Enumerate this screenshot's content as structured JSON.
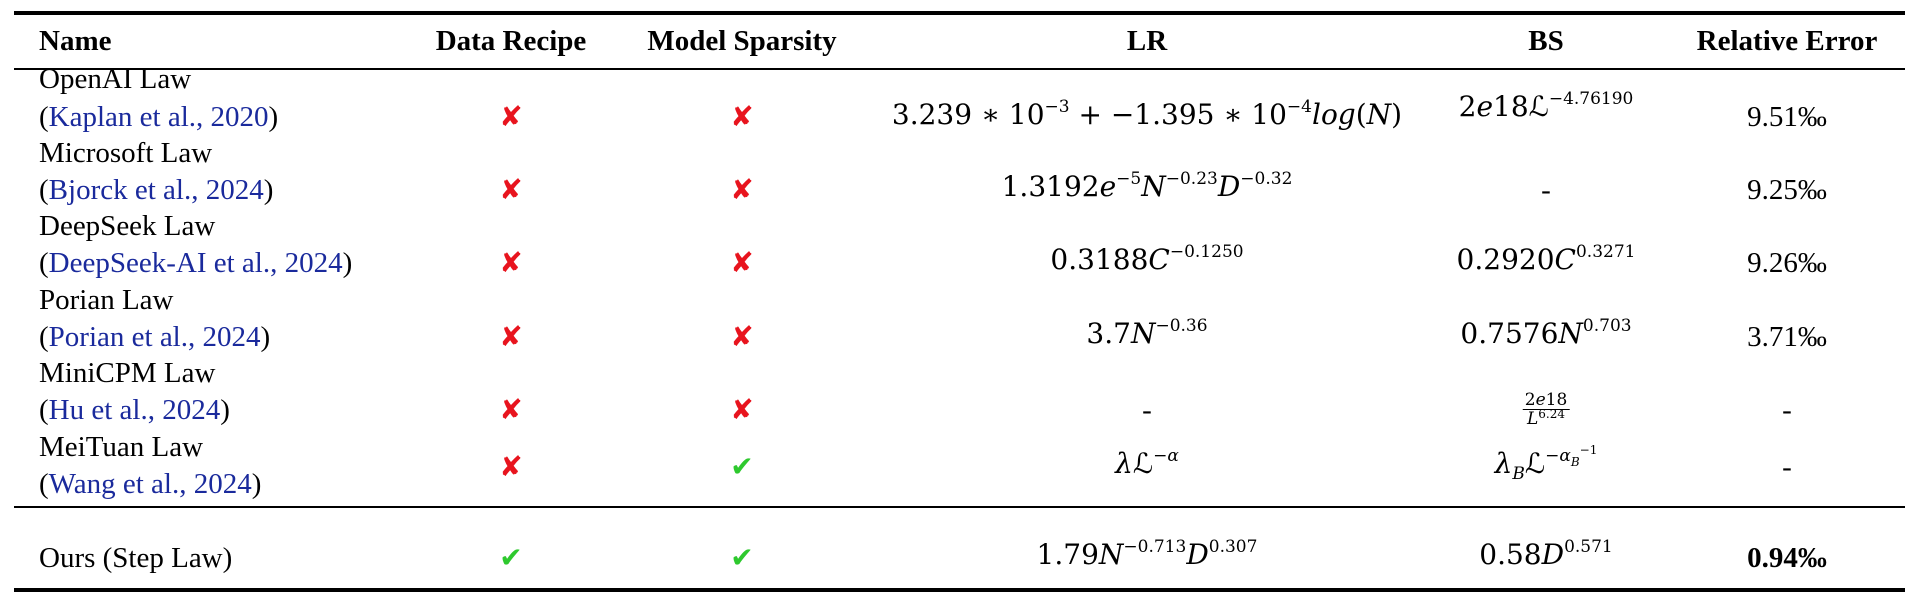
{
  "header": {
    "name": "Name",
    "data_recipe": "Data Recipe",
    "model_sparsity": "Model Sparsity",
    "lr": "LR",
    "bs": "BS",
    "relative_error": "Relative Error"
  },
  "rows": [
    {
      "name": "OpenAI Law",
      "cite_open": "(",
      "cite_text": "Kaplan et al., 2020",
      "cite_close": ")",
      "data_recipe": "✘",
      "model_sparsity": "✘",
      "lr": "3.239 ∗ 10⁻³ + −1.395 ∗ 10⁻⁴log(N)",
      "bs": "2e18ℒ^−4.76190",
      "relative_error": "9.51‰"
    },
    {
      "name": "Microsoft Law",
      "cite_open": "(",
      "cite_text": "Bjorck et al., 2024",
      "cite_close": ")",
      "data_recipe": "✘",
      "model_sparsity": "✘",
      "lr": "1.3192e^−5 N^−0.23 D^−0.32",
      "bs": "-",
      "relative_error": "9.25‰"
    },
    {
      "name": "DeepSeek Law",
      "cite_open": "(",
      "cite_text": "DeepSeek-AI et al., 2024",
      "cite_close": ")",
      "data_recipe": "✘",
      "model_sparsity": "✘",
      "lr": "0.3188C^−0.1250",
      "bs": "0.2920C^0.3271",
      "relative_error": "9.26‰"
    },
    {
      "name": "Porian Law",
      "cite_open": "(",
      "cite_text": "Porian et al., 2024",
      "cite_close": ")",
      "data_recipe": "✘",
      "model_sparsity": "✘",
      "lr": "3.7N^−0.36",
      "bs": "0.7576N^0.703",
      "relative_error": "3.71‰"
    },
    {
      "name": "MiniCPM Law",
      "cite_open": "(",
      "cite_text": "Hu et al., 2024",
      "cite_close": ")",
      "data_recipe": "✘",
      "model_sparsity": "✘",
      "lr": "-",
      "bs": "2e18 / L^6.24",
      "relative_error": "-"
    },
    {
      "name": "MeiTuan Law",
      "cite_open": "(",
      "cite_text": "Wang et al., 2024",
      "cite_close": ")",
      "data_recipe": "✘",
      "model_sparsity": "✔",
      "lr": "λℒ^−α",
      "bs": "λ_B ℒ^−α_B^−1",
      "relative_error": "-"
    }
  ],
  "ours": {
    "name": "Ours (Step Law)",
    "data_recipe": "✔",
    "model_sparsity": "✔",
    "lr": "1.79N^−0.713 D^0.307",
    "bs": "0.58D^0.571",
    "relative_error": "0.94‰"
  },
  "colors": {
    "cross": "#e8141e",
    "check": "#2ec92e",
    "citation": "#1a2a9c"
  }
}
